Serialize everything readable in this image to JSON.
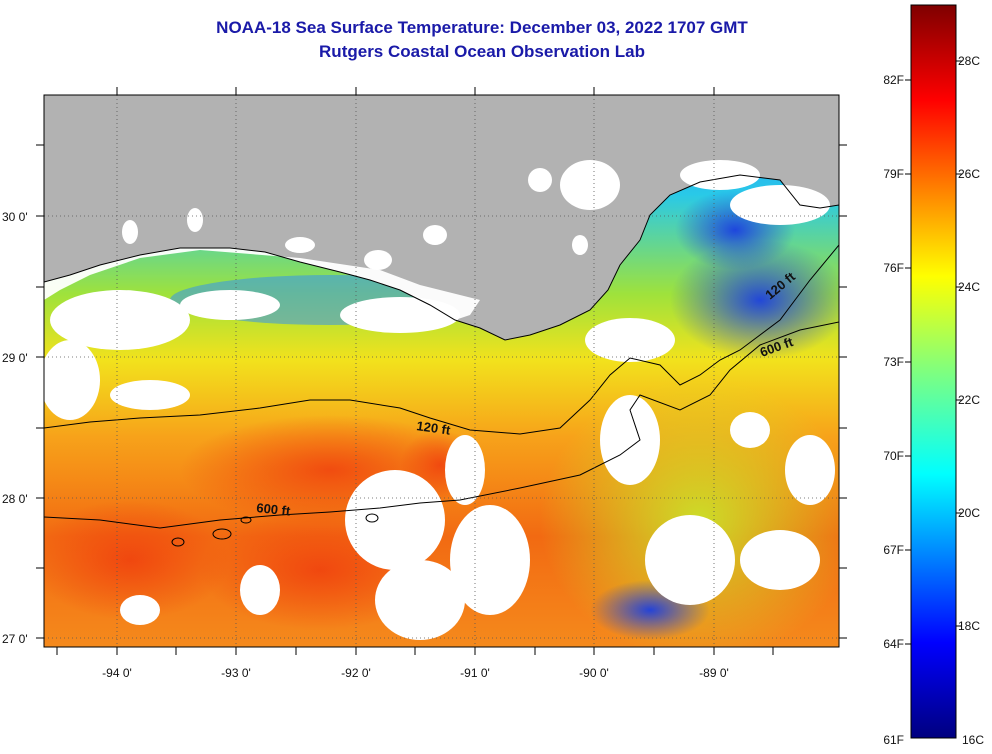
{
  "header": {
    "title": "NOAA-18 Sea Surface Temperature:  December 03, 2022 1707 GMT",
    "subtitle": "Rutgers Coastal Ocean Observation Lab"
  },
  "map": {
    "lat_labels": [
      "30 0'",
      "29 0'",
      "28 0'",
      "27 0'"
    ],
    "lon_labels": [
      "-94 0'",
      "-93 0'",
      "-92 0'",
      "-91 0'",
      "-90 0'",
      "-89 0'"
    ],
    "contours": [
      {
        "label": "120 ft"
      },
      {
        "label": "600 ft"
      },
      {
        "label": "120 ft"
      },
      {
        "label": "600 ft"
      }
    ],
    "colors": {
      "land": "#b2b2b2",
      "cloud": "#ffffff",
      "contour": "#000000"
    }
  },
  "colorbar": {
    "fahrenheit": [
      "82F",
      "79F",
      "76F",
      "73F",
      "70F",
      "67F",
      "64F",
      "61F"
    ],
    "celsius": [
      "28C",
      "26C",
      "24C",
      "22C",
      "20C",
      "18C",
      "16C"
    ]
  }
}
